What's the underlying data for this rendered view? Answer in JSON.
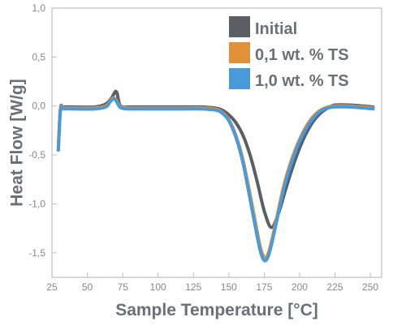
{
  "chart_data": {
    "type": "line",
    "title": "",
    "xlabel": "Sample Temperature [°C]",
    "ylabel": "Heat Flow [W/g]",
    "xlim": [
      25,
      258
    ],
    "ylim": [
      -1.75,
      1.0
    ],
    "x_ticks": [
      25,
      50,
      75,
      100,
      125,
      150,
      175,
      200,
      225,
      250
    ],
    "x_tick_labels": [
      "25",
      "50",
      "75",
      "100",
      "125",
      "150",
      "175",
      "200",
      "225",
      "250"
    ],
    "y_ticks": [
      1.0,
      0.5,
      0.0,
      -0.5,
      -1.0,
      -1.5
    ],
    "y_tick_labels": [
      "1,0",
      "0,5",
      "0,0",
      "-0,5",
      "-1,0",
      "-1,5"
    ],
    "grid": false,
    "legend_position": "top-right",
    "series": [
      {
        "name": "Initial",
        "color": "#5c5e66",
        "x": [
          29.5,
          31,
          33,
          40,
          55,
          63,
          67,
          69,
          70,
          71,
          72,
          73,
          75,
          80,
          100,
          120,
          130,
          140,
          145,
          150,
          155,
          160,
          165,
          170,
          175,
          180,
          185,
          190,
          195,
          200,
          205,
          210,
          215,
          220,
          225,
          235,
          245,
          252
        ],
        "y": [
          -0.45,
          -0.03,
          -0.01,
          -0.01,
          -0.01,
          0.02,
          0.08,
          0.13,
          0.15,
          0.13,
          0.06,
          0.01,
          -0.01,
          -0.01,
          -0.01,
          -0.01,
          -0.01,
          -0.02,
          -0.04,
          -0.09,
          -0.17,
          -0.3,
          -0.5,
          -0.77,
          -1.07,
          -1.24,
          -1.1,
          -0.86,
          -0.63,
          -0.43,
          -0.27,
          -0.15,
          -0.07,
          -0.02,
          0.01,
          0.01,
          0.0,
          -0.01
        ]
      },
      {
        "name": "0,1 wt. % TS",
        "color": "#e0913a",
        "x": [
          29.5,
          31,
          33,
          40,
          55,
          63,
          66,
          68,
          70,
          72,
          74,
          80,
          100,
          120,
          130,
          140,
          145,
          150,
          155,
          160,
          165,
          170,
          173,
          176,
          179,
          183,
          187,
          190,
          195,
          200,
          205,
          210,
          215,
          220,
          225,
          235,
          245,
          252
        ],
        "y": [
          -0.42,
          -0.03,
          -0.02,
          -0.02,
          -0.02,
          0.0,
          0.05,
          0.08,
          0.07,
          0.02,
          -0.01,
          -0.02,
          -0.02,
          -0.02,
          -0.02,
          -0.03,
          -0.06,
          -0.14,
          -0.3,
          -0.55,
          -0.9,
          -1.28,
          -1.48,
          -1.55,
          -1.45,
          -1.2,
          -0.93,
          -0.75,
          -0.52,
          -0.34,
          -0.2,
          -0.1,
          -0.04,
          -0.01,
          0.0,
          0.0,
          -0.01,
          -0.02
        ]
      },
      {
        "name": "1,0 wt. % TS",
        "color": "#4a9ad9",
        "x": [
          29.5,
          31,
          33,
          40,
          55,
          63,
          66,
          68,
          70,
          72,
          74,
          80,
          100,
          120,
          130,
          140,
          145,
          150,
          155,
          160,
          165,
          170,
          173,
          176,
          179,
          183,
          187,
          190,
          195,
          200,
          205,
          210,
          215,
          220,
          225,
          235,
          245,
          252
        ],
        "y": [
          -0.45,
          -0.04,
          -0.03,
          -0.03,
          -0.03,
          -0.01,
          0.04,
          0.07,
          0.06,
          0.01,
          -0.02,
          -0.03,
          -0.03,
          -0.03,
          -0.03,
          -0.04,
          -0.07,
          -0.15,
          -0.32,
          -0.58,
          -0.95,
          -1.33,
          -1.52,
          -1.58,
          -1.48,
          -1.23,
          -0.96,
          -0.78,
          -0.55,
          -0.36,
          -0.22,
          -0.12,
          -0.05,
          -0.02,
          -0.01,
          -0.01,
          -0.02,
          -0.03
        ]
      }
    ]
  }
}
